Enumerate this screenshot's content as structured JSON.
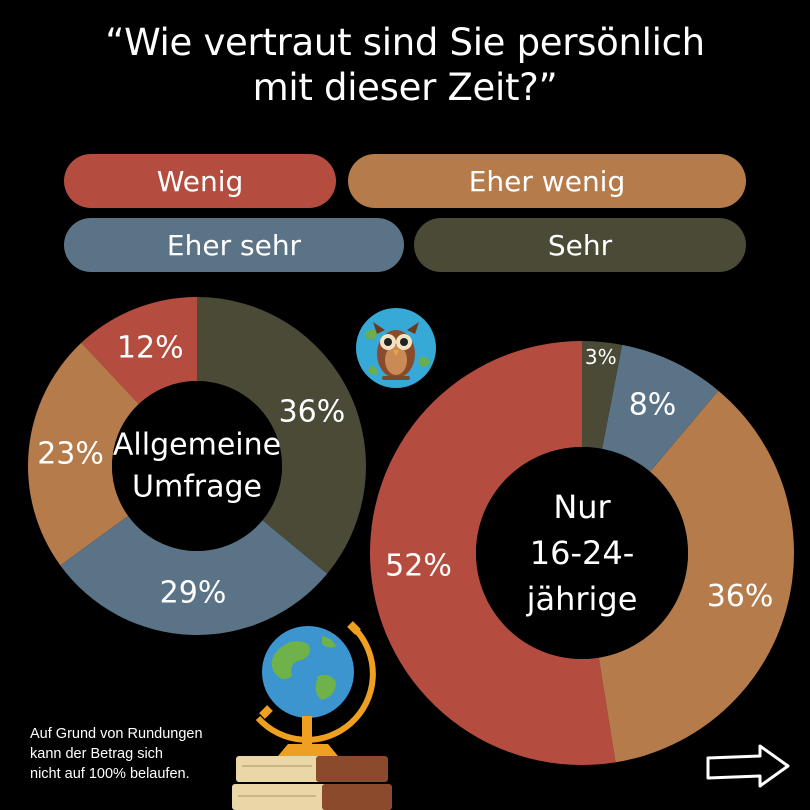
{
  "title_line1": "“Wie vertraut sind Sie persönlich",
  "title_line2": "mit dieser Zeit?”",
  "legend": [
    {
      "label": "Wenig",
      "color": "#b44d3f"
    },
    {
      "label": "Eher wenig",
      "color": "#b57b4a"
    },
    {
      "label": "Eher sehr",
      "color": "#5b7386"
    },
    {
      "label": "Sehr",
      "color": "#4a4a37"
    }
  ],
  "chart_data": [
    {
      "type": "pie",
      "style": "donut",
      "center_label": [
        "Allgemeine",
        "Umfrage"
      ],
      "categories": [
        "Wenig",
        "Eher wenig",
        "Eher sehr",
        "Sehr"
      ],
      "values": [
        12,
        23,
        29,
        36
      ],
      "labels": [
        "12%",
        "23%",
        "29%",
        "36%"
      ]
    },
    {
      "type": "pie",
      "style": "donut",
      "center_label": [
        "Nur",
        "16-24-",
        "jährige"
      ],
      "categories": [
        "Wenig",
        "Eher wenig",
        "Eher sehr",
        "Sehr"
      ],
      "values": [
        52,
        36,
        8,
        3
      ],
      "labels": [
        "52%",
        "36%",
        "8%",
        "3%"
      ]
    }
  ],
  "footnote": [
    "Auf Grund von Rundungen",
    "kann der Betrag sich",
    "nicht auf 100% belaufen."
  ],
  "icons": [
    "owl-icon",
    "globe-icon",
    "books-icon",
    "next-arrow-icon"
  ]
}
